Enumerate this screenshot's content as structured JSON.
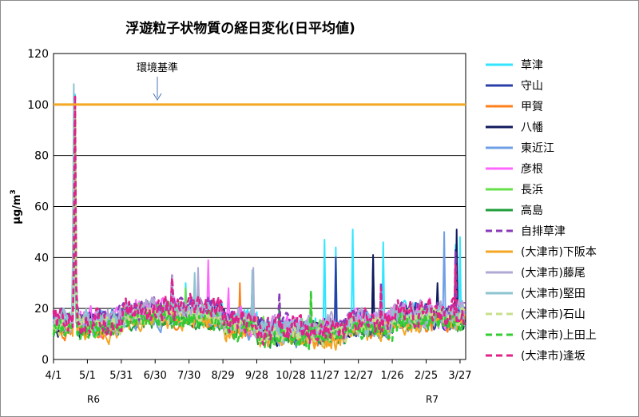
{
  "chart_data": {
    "type": "line",
    "title": "浮遊粒子状物質の経日変化(日平均値)",
    "ylabel_main": "μg/m",
    "ylabel_sup": "3",
    "xlabel": "",
    "ylim": [
      0,
      120
    ],
    "yticks": [
      "0",
      "20",
      "40",
      "60",
      "80",
      "100",
      "120"
    ],
    "xticks": [
      "4/1",
      "5/1",
      "5/31",
      "6/30",
      "7/30",
      "8/29",
      "9/28",
      "10/28",
      "11/27",
      "12/27",
      "1/26",
      "2/25",
      "3/27"
    ],
    "era_labels": [
      "R6",
      "R7"
    ],
    "grid": true,
    "legend_position": "right",
    "reference": {
      "label": "環境基準",
      "value": 100,
      "color": "#f5a623"
    },
    "series": [
      {
        "name": "草津",
        "color": "#33e5ff",
        "dash": false,
        "base": 15,
        "amp": 7,
        "seed": 1,
        "spikes": [
          [
            19,
            104
          ],
          [
            117,
            30
          ],
          [
            240,
            47
          ],
          [
            250,
            44
          ],
          [
            265,
            51
          ],
          [
            292,
            46
          ],
          [
            356,
            45
          ],
          [
            360,
            48
          ]
        ]
      },
      {
        "name": "守山",
        "color": "#2a3fa8",
        "dash": false,
        "base": 14,
        "amp": 7,
        "seed": 2,
        "spikes": [
          [
            19,
            100
          ],
          [
            250,
            40
          ],
          [
            283,
            40
          ],
          [
            356,
            43
          ]
        ]
      },
      {
        "name": "甲賀",
        "color": "#ff7f1a",
        "dash": false,
        "base": 12,
        "amp": 6,
        "seed": 3,
        "spikes": [
          [
            19,
            95
          ],
          [
            165,
            30
          ]
        ]
      },
      {
        "name": "八幡",
        "color": "#101a5c",
        "dash": false,
        "base": 14,
        "amp": 7,
        "seed": 4,
        "spikes": [
          [
            19,
            100
          ],
          [
            283,
            41
          ],
          [
            340,
            30
          ],
          [
            357,
            51
          ]
        ]
      },
      {
        "name": "東近江",
        "color": "#6fa0e6",
        "dash": false,
        "base": 13,
        "amp": 7,
        "seed": 5,
        "spikes": [
          [
            19,
            101
          ],
          [
            125,
            30
          ],
          [
            346,
            50
          ]
        ]
      },
      {
        "name": "彦根",
        "color": "#ff66ff",
        "dash": false,
        "base": 15,
        "amp": 8,
        "seed": 6,
        "spikes": [
          [
            19,
            103
          ],
          [
            137,
            39
          ],
          [
            155,
            28
          ]
        ]
      },
      {
        "name": "長浜",
        "color": "#66e04a",
        "dash": false,
        "base": 14,
        "amp": 7,
        "seed": 7,
        "spikes": [
          [
            19,
            98
          ],
          [
            117,
            28
          ],
          [
            228,
            26
          ]
        ]
      },
      {
        "name": "高島",
        "color": "#1f9e3a",
        "dash": false,
        "base": 12,
        "amp": 6,
        "seed": 8,
        "spikes": [
          [
            19,
            95
          ],
          [
            200,
            22
          ]
        ]
      },
      {
        "name": "自排草津",
        "color": "#8a3ab9",
        "dash": true,
        "base": 16,
        "amp": 7,
        "seed": 9,
        "spikes": [
          [
            19,
            104
          ],
          [
            105,
            33
          ],
          [
            176,
            27
          ],
          [
            200,
            26
          ],
          [
            290,
            30
          ],
          [
            356,
            42
          ]
        ]
      },
      {
        "name": "(大津市)下阪本",
        "color": "#f5a623",
        "dash": false,
        "base": 11,
        "amp": 6,
        "seed": 10,
        "spikes": [
          [
            19,
            93
          ]
        ]
      },
      {
        "name": "(大津市)藤尾",
        "color": "#b2a8d6",
        "dash": false,
        "base": 15,
        "amp": 8,
        "seed": 11,
        "spikes": [
          [
            19,
            100
          ],
          [
            105,
            33
          ],
          [
            128,
            36
          ],
          [
            177,
            36
          ]
        ]
      },
      {
        "name": "(大津市)堅田",
        "color": "#8cc4d0",
        "dash": false,
        "base": 14,
        "amp": 7,
        "seed": 12,
        "spikes": [
          [
            18,
            108
          ],
          [
            125,
            34
          ],
          [
            176,
            35
          ]
        ]
      },
      {
        "name": "(大津市)石山",
        "color": "#c7e08a",
        "dash": true,
        "base": 13,
        "amp": 6,
        "seed": 13,
        "spikes": [
          [
            19,
            98
          ]
        ]
      },
      {
        "name": "(大津市)上田上",
        "color": "#33cc33",
        "dash": true,
        "base": 12,
        "amp": 6,
        "seed": 14,
        "spikes": [
          [
            19,
            96
          ],
          [
            228,
            27
          ]
        ]
      },
      {
        "name": "(大津市)逢坂",
        "color": "#e0218a",
        "dash": true,
        "base": 15,
        "amp": 8,
        "seed": 15,
        "spikes": [
          [
            19,
            103
          ],
          [
            105,
            32
          ],
          [
            290,
            28
          ],
          [
            356,
            37
          ]
        ]
      }
    ]
  }
}
